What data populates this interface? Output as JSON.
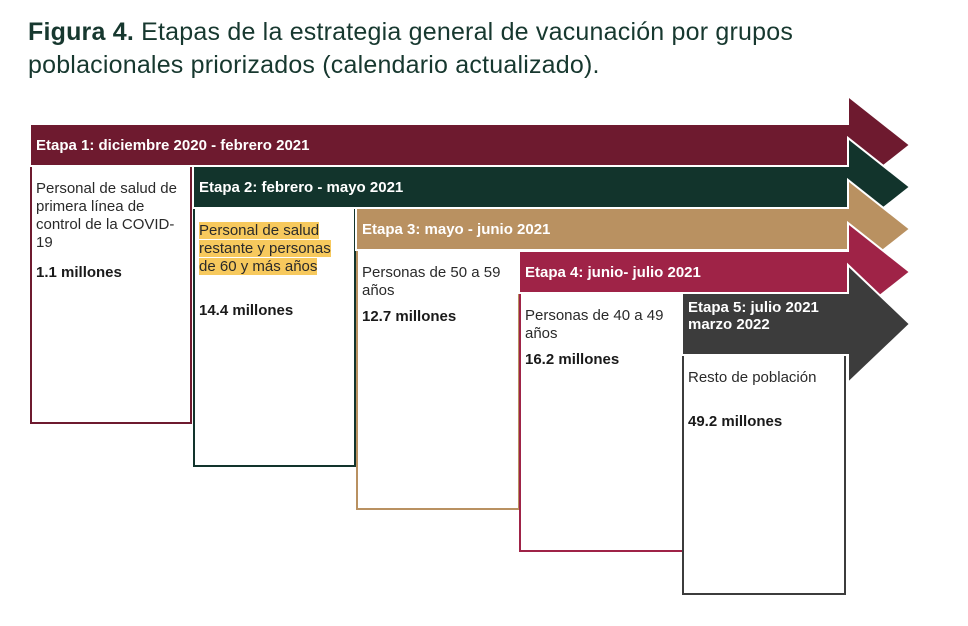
{
  "title": {
    "label": "Figura 4.",
    "text": "Etapas de la estrategia general de vacunación por grupos poblacionales priorizados (calendario actualizado)."
  },
  "stages": [
    {
      "label": "Etapa 1: diciembre 2020 - febrero 2021",
      "description": "Personal de salud de primera línea de control de la COVID-19",
      "count": "1.1 millones",
      "color": "#6e1a2f",
      "highlighted": false
    },
    {
      "label": "Etapa 2: febrero - mayo 2021",
      "description": "Personal de salud restante y personas de 60 y más años",
      "count": "14.4 millones",
      "color": "#12342c",
      "highlighted": true,
      "highlight_color": "#f7c95d"
    },
    {
      "label": "Etapa 3: mayo - junio 2021",
      "description": "Personas de 50 a 59 años",
      "count": "12.7 millones",
      "color": "#b99161",
      "highlighted": false
    },
    {
      "label": "Etapa 4: junio- julio 2021",
      "description": "Personas de 40 a 49 años",
      "count": "16.2 millones",
      "color": "#9f2347",
      "highlighted": false
    },
    {
      "label": "Etapa 5: julio 2021\nmarzo 2022",
      "description": "Resto de población",
      "count": "49.2 millones",
      "color": "#3c3c3c",
      "highlighted": false
    }
  ]
}
